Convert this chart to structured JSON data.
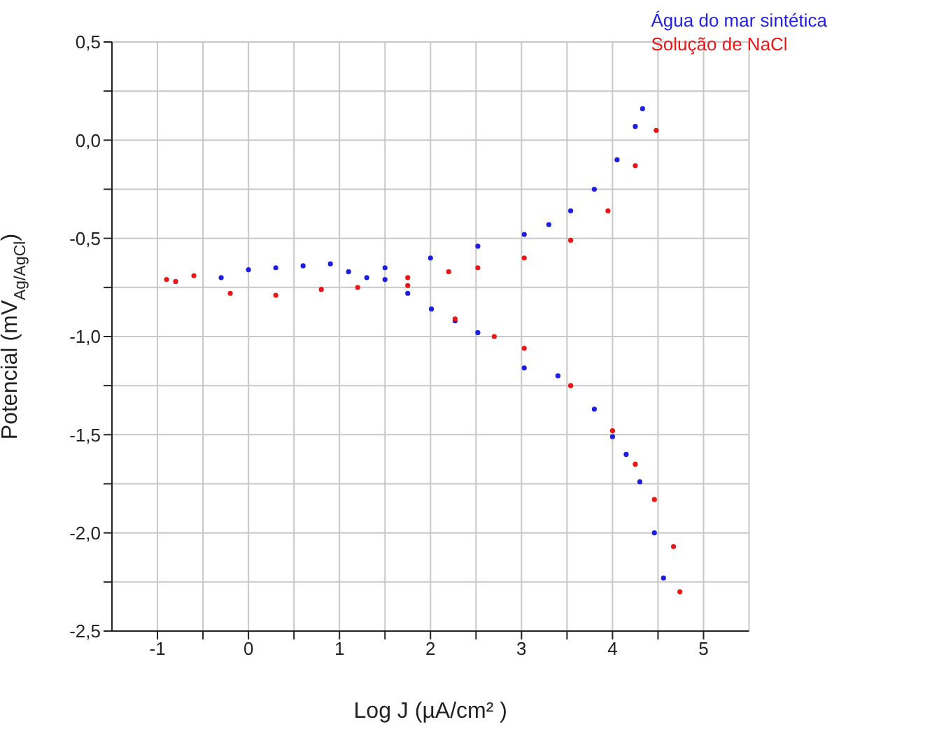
{
  "chart_data": {
    "type": "scatter",
    "xlabel": "Log J (µA/cm² )",
    "ylabel": "Potencial (mV$_{Ag/AgCl}$)",
    "xlim": [
      -1.5,
      5.5
    ],
    "xticks": [
      -1,
      {
        "value": -0.5,
        "label": null
      },
      0,
      {
        "value": 0.5,
        "label": null
      },
      1,
      {
        "value": 1.5,
        "label": null
      },
      2,
      {
        "value": 2.5,
        "label": null
      },
      3,
      {
        "value": 3.5,
        "label": null
      },
      4,
      {
        "value": 4.5,
        "label": null
      },
      5
    ],
    "ylim": [
      -2.5,
      0.5
    ],
    "yticks": [
      {
        "value": -2.5,
        "label": "-2,5"
      },
      {
        "value": -2.25,
        "label": null
      },
      {
        "value": -2,
        "label": "-2,0"
      },
      {
        "value": -1.75,
        "label": null
      },
      {
        "value": -1.5,
        "label": "-1,5"
      },
      {
        "value": -1.25,
        "label": null
      },
      {
        "value": -1,
        "label": "-1,0"
      },
      {
        "value": -0.75,
        "label": null
      },
      {
        "value": -0.5,
        "label": "-0,5"
      },
      {
        "value": -0.25,
        "label": null
      },
      {
        "value": 0,
        "label": "0,0"
      },
      {
        "value": 0.25,
        "label": null
      },
      {
        "value": 0.5,
        "label": "0,5"
      }
    ],
    "grid": true,
    "legend": "top right",
    "marker": "circle",
    "series": [
      {
        "name": "Água do mar sintética",
        "color": "#1f1fe0",
        "x": [
          -0.3,
          0,
          0.3,
          0.6,
          0.9,
          1.1,
          1.3,
          1.5,
          2,
          2.52,
          3.03,
          3.3,
          3.54,
          3.8,
          4.05,
          4.25,
          4.33,
          1.5,
          1.75,
          2.01,
          2.27,
          2.52,
          3.03,
          3.4,
          3.8,
          4,
          4.15,
          4.3,
          4.46,
          4.56
        ],
        "values": [
          -0.7,
          -0.66,
          -0.65,
          -0.64,
          -0.63,
          -0.67,
          -0.7,
          -0.65,
          -0.6,
          -0.54,
          -0.48,
          -0.43,
          -0.36,
          -0.25,
          -0.1,
          0.07,
          0.16,
          -0.71,
          -0.78,
          -0.86,
          -0.92,
          -0.98,
          -1.16,
          -1.2,
          -1.37,
          -1.51,
          -1.6,
          -1.74,
          -2,
          -2.23
        ]
      },
      {
        "name": "Solução de NaCl",
        "color": "#e81818",
        "x": [
          -0.9,
          -0.8,
          -0.6,
          -0.2,
          0.3,
          0.8,
          1.2,
          1.75,
          2.2,
          2.52,
          3.03,
          3.54,
          3.95,
          4.25,
          4.48,
          1.75,
          2.27,
          2.7,
          3.03,
          3.54,
          4,
          4.25,
          4.46,
          4.67,
          4.74
        ],
        "values": [
          -0.71,
          -0.72,
          -0.69,
          -0.78,
          -0.79,
          -0.76,
          -0.75,
          -0.7,
          -0.67,
          -0.65,
          -0.6,
          -0.51,
          -0.36,
          -0.13,
          0.05,
          -0.74,
          -0.91,
          -1,
          -1.06,
          -1.25,
          -1.48,
          -1.65,
          -1.83,
          -2.07,
          -2.3
        ]
      }
    ]
  }
}
